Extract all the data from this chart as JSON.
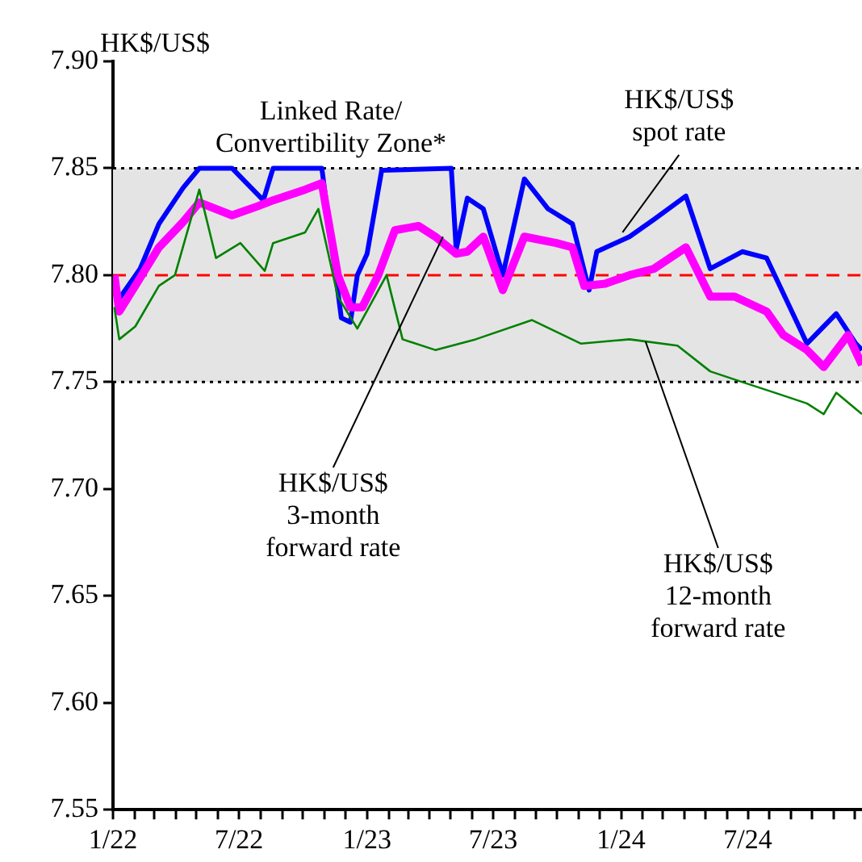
{
  "chart_data": {
    "type": "line",
    "ylabel": "HK$/US$",
    "xlim": [
      "2022-01-01",
      "2024-12-12"
    ],
    "xticks": [
      {
        "value": "2022-01-01",
        "label": "1/22"
      },
      {
        "value": "2022-02-01",
        "label": null
      },
      {
        "value": "2022-03-01",
        "label": null
      },
      {
        "value": "2022-04-01",
        "label": null
      },
      {
        "value": "2022-05-01",
        "label": null
      },
      {
        "value": "2022-06-01",
        "label": null
      },
      {
        "value": "2022-07-01",
        "label": "7/22"
      },
      {
        "value": "2022-08-01",
        "label": null
      },
      {
        "value": "2022-09-01",
        "label": null
      },
      {
        "value": "2022-10-01",
        "label": null
      },
      {
        "value": "2022-11-01",
        "label": null
      },
      {
        "value": "2022-12-01",
        "label": null
      },
      {
        "value": "2023-01-01",
        "label": "1/23"
      },
      {
        "value": "2023-02-01",
        "label": null
      },
      {
        "value": "2023-03-01",
        "label": null
      },
      {
        "value": "2023-04-01",
        "label": null
      },
      {
        "value": "2023-05-01",
        "label": null
      },
      {
        "value": "2023-06-01",
        "label": null
      },
      {
        "value": "2023-07-01",
        "label": "7/23"
      },
      {
        "value": "2023-08-01",
        "label": null
      },
      {
        "value": "2023-09-01",
        "label": null
      },
      {
        "value": "2023-10-01",
        "label": null
      },
      {
        "value": "2023-11-01",
        "label": null
      },
      {
        "value": "2023-12-01",
        "label": null
      },
      {
        "value": "2024-01-01",
        "label": "1/24"
      },
      {
        "value": "2024-02-01",
        "label": null
      },
      {
        "value": "2024-03-01",
        "label": null
      },
      {
        "value": "2024-04-01",
        "label": null
      },
      {
        "value": "2024-05-01",
        "label": null
      },
      {
        "value": "2024-06-01",
        "label": null
      },
      {
        "value": "2024-07-01",
        "label": "7/24"
      },
      {
        "value": "2024-08-01",
        "label": null
      },
      {
        "value": "2024-09-01",
        "label": null
      },
      {
        "value": "2024-10-01",
        "label": null
      },
      {
        "value": "2024-11-01",
        "label": null
      },
      {
        "value": "2024-12-01",
        "label": null
      }
    ],
    "ylim": [
      7.55,
      7.9
    ],
    "yticks": [
      {
        "value": 7.55,
        "label": "7.55"
      },
      {
        "value": 7.6,
        "label": "7.60"
      },
      {
        "value": 7.65,
        "label": "7.65"
      },
      {
        "value": 7.7,
        "label": "7.70"
      },
      {
        "value": 7.75,
        "label": "7.75"
      },
      {
        "value": 7.8,
        "label": "7.80"
      },
      {
        "value": 7.85,
        "label": "7.85"
      },
      {
        "value": 7.9,
        "label": "7.90"
      }
    ],
    "legend": false,
    "marker": "none",
    "bands": [
      {
        "axis": "y",
        "from": 7.75,
        "to": 7.85,
        "label": "Linked Rate/\nConvertibility Zone*",
        "color": "#e4e4e4"
      }
    ],
    "ref_lines": [
      {
        "axis": "y",
        "value": 7.8,
        "color": "#ff0000",
        "line_style": "dashed"
      }
    ],
    "annotations": [
      {
        "text": "HK$/US$\nspot rate",
        "x": "2024-01-03",
        "y": 7.82
      },
      {
        "text": "HK$/US$\n3-month\nforward rate",
        "x": "2023-04-20",
        "y": 7.818
      },
      {
        "text": "HK$/US$\n12-month\nforward rate",
        "x": "2024-02-05",
        "y": 7.769
      }
    ],
    "series": [
      {
        "color": "#008000",
        "x": [
          "2022-01-03",
          "2022-01-10",
          "2022-02-02",
          "2022-03-08",
          "2022-03-31",
          "2022-05-05",
          "2022-05-29",
          "2022-07-03",
          "2022-08-07",
          "2022-08-19",
          "2022-10-04",
          "2022-10-23",
          "2022-11-20",
          "2022-12-18",
          "2023-01-29",
          "2023-02-21",
          "2023-04-09",
          "2023-06-06",
          "2023-08-26",
          "2023-11-04",
          "2024-01-13",
          "2024-03-22",
          "2024-05-08",
          "2024-06-23",
          "2024-08-09",
          "2024-09-24",
          "2024-10-18",
          "2024-11-05",
          "2024-12-12"
        ],
        "values": [
          7.785,
          7.77,
          7.776,
          7.795,
          7.8,
          7.84,
          7.808,
          7.815,
          7.802,
          7.815,
          7.82,
          7.831,
          7.79,
          7.775,
          7.8,
          7.77,
          7.765,
          7.77,
          7.779,
          7.768,
          7.77,
          7.767,
          7.755,
          7.75,
          7.745,
          7.74,
          7.735,
          7.745,
          7.735
        ]
      },
      {
        "color": "#ff00ff",
        "x": [
          "2022-01-03",
          "2022-01-10",
          "2022-02-02",
          "2022-03-08",
          "2022-04-12",
          "2022-05-05",
          "2022-06-21",
          "2022-07-26",
          "2022-08-19",
          "2022-10-04",
          "2022-10-28",
          "2022-11-20",
          "2022-12-08",
          "2022-12-25",
          "2023-01-17",
          "2023-02-10",
          "2023-03-16",
          "2023-04-09",
          "2023-05-09",
          "2023-05-25",
          "2023-06-17",
          "2023-07-15",
          "2023-08-15",
          "2023-09-30",
          "2023-10-23",
          "2023-11-09",
          "2023-12-09",
          "2024-01-13",
          "2024-02-17",
          "2024-04-03",
          "2024-05-08",
          "2024-06-12",
          "2024-07-28",
          "2024-08-21",
          "2024-09-24",
          "2024-10-18",
          "2024-11-22",
          "2024-12-12"
        ],
        "values": [
          7.8,
          7.783,
          7.795,
          7.813,
          7.825,
          7.834,
          7.828,
          7.832,
          7.835,
          7.84,
          7.843,
          7.8,
          7.785,
          7.785,
          7.8,
          7.821,
          7.823,
          7.818,
          7.81,
          7.811,
          7.818,
          7.793,
          7.818,
          7.815,
          7.813,
          7.795,
          7.796,
          7.8,
          7.803,
          7.813,
          7.79,
          7.79,
          7.783,
          7.772,
          7.765,
          7.757,
          7.772,
          7.758
        ]
      },
      {
        "color": "#0000ff",
        "x": [
          "2022-01-03",
          "2022-01-10",
          "2022-02-09",
          "2022-03-08",
          "2022-04-12",
          "2022-05-05",
          "2022-06-21",
          "2022-08-05",
          "2022-08-19",
          "2022-10-28",
          "2022-11-25",
          "2022-12-08",
          "2022-12-18",
          "2023-01-01",
          "2023-01-22",
          "2023-05-02",
          "2023-05-09",
          "2023-05-25",
          "2023-06-17",
          "2023-07-15",
          "2023-08-15",
          "2023-09-18",
          "2023-10-23",
          "2023-11-16",
          "2023-11-27",
          "2024-01-13",
          "2024-02-17",
          "2024-04-03",
          "2024-05-08",
          "2024-06-23",
          "2024-07-28",
          "2024-09-24",
          "2024-11-05",
          "2024-12-03",
          "2024-12-12"
        ],
        "values": [
          7.8,
          7.789,
          7.803,
          7.824,
          7.841,
          7.85,
          7.85,
          7.835,
          7.85,
          7.85,
          7.78,
          7.778,
          7.8,
          7.81,
          7.849,
          7.85,
          7.812,
          7.836,
          7.831,
          7.8,
          7.845,
          7.831,
          7.824,
          7.793,
          7.811,
          7.818,
          7.826,
          7.837,
          7.803,
          7.811,
          7.808,
          7.768,
          7.782,
          7.768,
          7.765
        ]
      }
    ]
  }
}
